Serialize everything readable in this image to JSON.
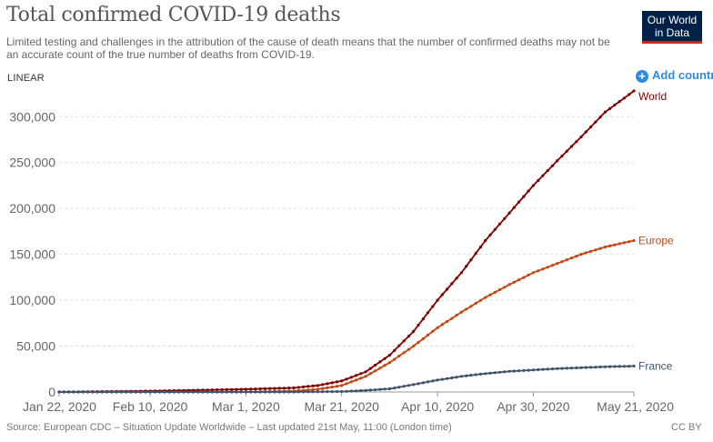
{
  "header": {
    "title": "Total confirmed COVID-19 deaths",
    "subtitle": "Limited testing and challenges in the attribution of the cause of death means that the number of confirmed deaths may not be an accurate count of the true number of deaths from COVID-19.",
    "logo_line1": "Our World",
    "logo_line2": "in Data"
  },
  "controls": {
    "scale_toggle": "LINEAR",
    "add_country": "Add country",
    "add_icon": "plus-circle-icon"
  },
  "footer": {
    "source": "Source: European CDC – Situation Update Worldwide – Last updated 21st May, 11:00 (London time)",
    "license": "CC BY"
  },
  "colors": {
    "World": "#7f0000",
    "Europe": "#c24612",
    "France": "#3f5469",
    "grid": "#dddddd"
  },
  "chart_data": {
    "type": "line",
    "title": "Total confirmed COVID-19 deaths",
    "xlabel": "",
    "ylabel": "",
    "x_start": "2020-01-22",
    "x_end": "2020-05-21",
    "x_tick_labels": [
      "Jan 22, 2020",
      "Feb 10, 2020",
      "Mar 1, 2020",
      "Mar 21, 2020",
      "Apr 10, 2020",
      "Apr 30, 2020",
      "May 21, 2020"
    ],
    "x_tick_dates": [
      "2020-01-22",
      "2020-02-10",
      "2020-03-01",
      "2020-03-21",
      "2020-04-10",
      "2020-04-30",
      "2020-05-21"
    ],
    "y_ticks": [
      0,
      50000,
      100000,
      150000,
      200000,
      250000,
      300000
    ],
    "y_tick_labels": [
      "0",
      "50,000",
      "100,000",
      "150,000",
      "200,000",
      "250,000",
      "300,000"
    ],
    "ylim": [
      0,
      330000
    ],
    "grid": "horizontal dashed",
    "series": [
      {
        "name": "World",
        "points": [
          [
            "2020-01-22",
            0
          ],
          [
            "2020-02-10",
            1000
          ],
          [
            "2020-03-01",
            3000
          ],
          [
            "2020-03-11",
            4500
          ],
          [
            "2020-03-16",
            7000
          ],
          [
            "2020-03-21",
            12000
          ],
          [
            "2020-03-26",
            22000
          ],
          [
            "2020-03-31",
            40000
          ],
          [
            "2020-04-05",
            66000
          ],
          [
            "2020-04-10",
            100000
          ],
          [
            "2020-04-15",
            130000
          ],
          [
            "2020-04-20",
            165000
          ],
          [
            "2020-04-25",
            195000
          ],
          [
            "2020-04-30",
            225000
          ],
          [
            "2020-05-05",
            252000
          ],
          [
            "2020-05-10",
            278000
          ],
          [
            "2020-05-15",
            305000
          ],
          [
            "2020-05-21",
            328000
          ]
        ]
      },
      {
        "name": "Europe",
        "points": [
          [
            "2020-01-22",
            0
          ],
          [
            "2020-02-20",
            0
          ],
          [
            "2020-03-01",
            50
          ],
          [
            "2020-03-11",
            1000
          ],
          [
            "2020-03-16",
            3000
          ],
          [
            "2020-03-21",
            7000
          ],
          [
            "2020-03-26",
            17000
          ],
          [
            "2020-03-31",
            32000
          ],
          [
            "2020-04-05",
            50000
          ],
          [
            "2020-04-10",
            70000
          ],
          [
            "2020-04-15",
            87000
          ],
          [
            "2020-04-20",
            103000
          ],
          [
            "2020-04-25",
            117000
          ],
          [
            "2020-04-30",
            130000
          ],
          [
            "2020-05-05",
            140000
          ],
          [
            "2020-05-10",
            150000
          ],
          [
            "2020-05-15",
            158000
          ],
          [
            "2020-05-21",
            165000
          ]
        ]
      },
      {
        "name": "France",
        "points": [
          [
            "2020-01-22",
            0
          ],
          [
            "2020-03-10",
            0
          ],
          [
            "2020-03-21",
            500
          ],
          [
            "2020-03-26",
            1700
          ],
          [
            "2020-03-31",
            3500
          ],
          [
            "2020-04-05",
            8000
          ],
          [
            "2020-04-10",
            13000
          ],
          [
            "2020-04-15",
            17000
          ],
          [
            "2020-04-20",
            20000
          ],
          [
            "2020-04-25",
            22500
          ],
          [
            "2020-04-30",
            24000
          ],
          [
            "2020-05-05",
            25500
          ],
          [
            "2020-05-10",
            26500
          ],
          [
            "2020-05-15",
            27500
          ],
          [
            "2020-05-21",
            28200
          ]
        ]
      }
    ]
  }
}
